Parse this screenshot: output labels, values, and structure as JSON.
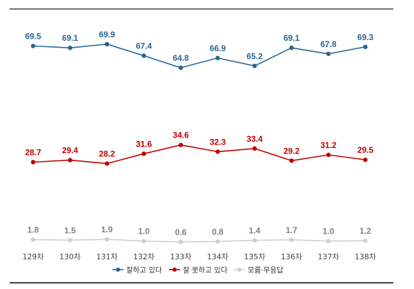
{
  "chart_data": {
    "type": "line",
    "title": "",
    "xlabel": "",
    "ylabel": "",
    "ylim": [
      0,
      80
    ],
    "grid": false,
    "legend_position": "bottom-center",
    "categories": [
      "129차",
      "130차",
      "131차",
      "132차",
      "133차",
      "134차",
      "135차",
      "136차",
      "137차",
      "138차"
    ],
    "series": [
      {
        "name": "잘하고 있다",
        "color": "#2a6591",
        "values": [
          69.5,
          69.1,
          69.9,
          67.4,
          64.8,
          66.9,
          65.2,
          69.1,
          67.8,
          69.3
        ],
        "labels": [
          "69.5",
          "69.1",
          "69.9",
          "67.4",
          "64.8",
          "66.9",
          "65.2",
          "69.1",
          "67.8",
          "69.3"
        ]
      },
      {
        "name": "잘 못하고 있다",
        "color": "#c00000",
        "values": [
          28.7,
          29.4,
          28.2,
          31.6,
          34.6,
          32.3,
          33.4,
          29.2,
          31.2,
          29.5
        ],
        "labels": [
          "28.7",
          "29.4",
          "28.2",
          "31.6",
          "34.6",
          "32.3",
          "33.4",
          "29.2",
          "31.2",
          "29.5"
        ]
      },
      {
        "name": "모름·무응답",
        "color": "#cfcfcf",
        "label_color": "#808080",
        "values": [
          1.8,
          1.5,
          1.9,
          1.0,
          0.6,
          0.8,
          1.4,
          1.7,
          1.0,
          1.2
        ],
        "labels": [
          "1.8",
          "1.5",
          "1.9",
          "1.0",
          "0.6",
          "0.8",
          "1.4",
          "1.7",
          "1.0",
          "1.2"
        ]
      }
    ]
  }
}
